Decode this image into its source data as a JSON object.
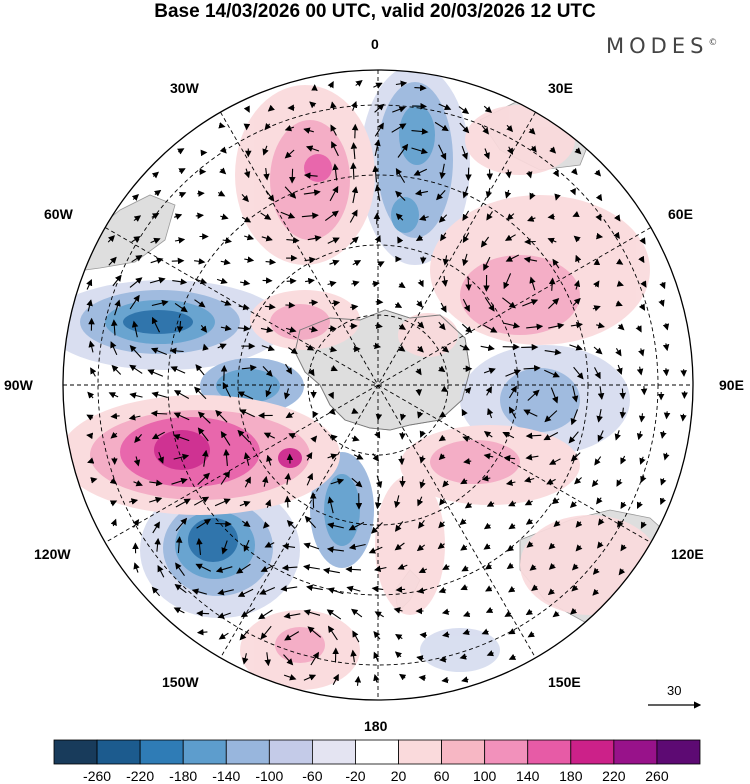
{
  "title": "Base 14/03/2026 00 UTC, valid 20/03/2026 12 UTC",
  "brand": "MODES",
  "brand_mark": "©",
  "longitude_labels": {
    "lon_0": "0",
    "lon_30e": "30E",
    "lon_60e": "60E",
    "lon_90e": "90E",
    "lon_120e": "120E",
    "lon_150e": "150E",
    "lon_180": "180",
    "lon_150w": "150W",
    "lon_120w": "120W",
    "lon_90w": "90W",
    "lon_60w": "60W",
    "lon_30w": "30W"
  },
  "wind_reference": {
    "label": "30"
  },
  "colorbar": {
    "colors": [
      "#183b5b",
      "#1c5b8e",
      "#2f7cb6",
      "#5d9dcd",
      "#98b6dd",
      "#c4cbe8",
      "#e4e4f2",
      "#ffffff",
      "#fadadc",
      "#f7b7c4",
      "#f291bb",
      "#e75ba6",
      "#cc2189",
      "#98128a",
      "#5d0a73"
    ],
    "labels": [
      "-260",
      "-220",
      "-180",
      "-140",
      "-100",
      "-60",
      "-20",
      "20",
      "60",
      "100",
      "140",
      "180",
      "220",
      "260"
    ]
  },
  "map_colors": {
    "land": "#dedede",
    "strong_neg": "#1f6aa5",
    "mid_neg": "#5d9dcd",
    "light_neg": "#98b6dd",
    "faint_neg": "#d6dcef",
    "strong_pos": "#cc2189",
    "mid_pos": "#e75ba6",
    "light_pos": "#f4a8c2",
    "faint_pos": "#fadadc"
  }
}
